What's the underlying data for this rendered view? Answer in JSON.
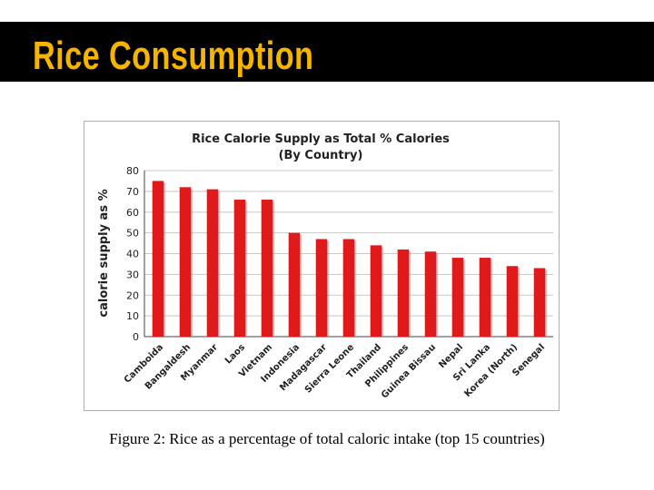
{
  "slide": {
    "title": "Rice Consumption",
    "caption": "Figure 2: Rice as a percentage of total caloric intake (top 15 countries)"
  },
  "colors": {
    "title_bar": "#000000",
    "title_text": "#f5b400",
    "bar": "#e01a1a",
    "bar_shadow": "#9a9a9a",
    "grid": "#c8c8c8"
  },
  "chart_data": {
    "type": "bar",
    "title": "Rice Calorie Supply as Total % Calories",
    "subtitle": "(By Country)",
    "xlabel": "",
    "ylabel": "calorie supply as %",
    "ylim": [
      0,
      80
    ],
    "yticks": [
      0,
      10,
      20,
      30,
      40,
      50,
      60,
      70,
      80
    ],
    "grid": true,
    "categories": [
      "Camboida",
      "Bangaldesh",
      "Myanmar",
      "Laos",
      "Vietnam",
      "Indonesia",
      "Madagascar",
      "Sierra Leone",
      "Thailand",
      "Philippines",
      "Guinea Bissau",
      "Nepal",
      "Sri Lanka",
      "Korea (North)",
      "Senegal"
    ],
    "values": [
      75,
      72,
      71,
      66,
      66,
      50,
      47,
      47,
      44,
      42,
      41,
      38,
      38,
      34,
      33
    ]
  }
}
